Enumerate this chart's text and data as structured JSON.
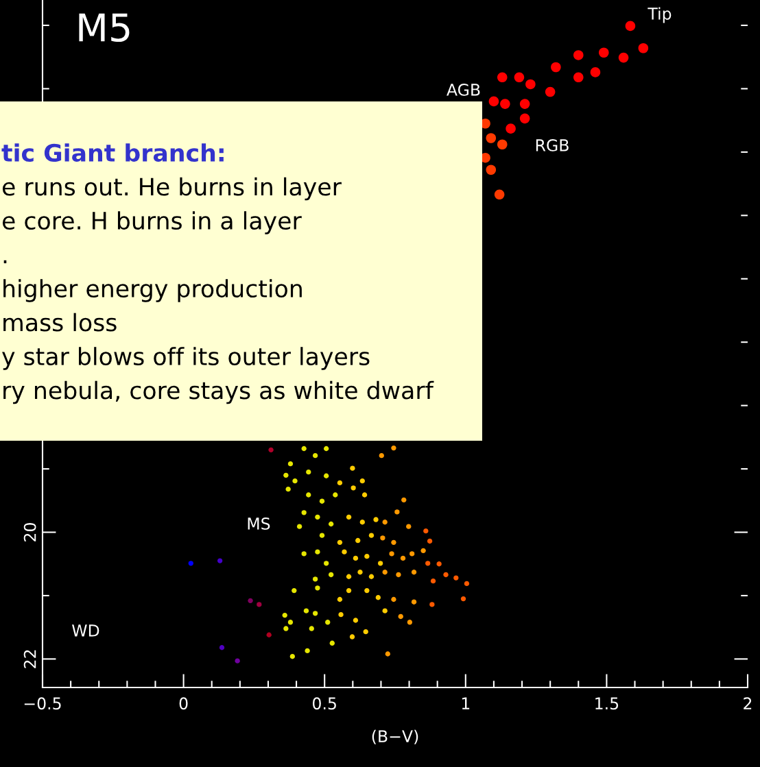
{
  "chart_data": {
    "type": "scatter",
    "title": "M5",
    "xlabel": "(B−V)",
    "xlim": [
      -0.5,
      2.0
    ],
    "ylim": [
      22.45,
      11.6
    ],
    "xticks": [
      {
        "value": -0.5,
        "label": "−0.5"
      },
      {
        "value": -0.4,
        "label": null
      },
      {
        "value": -0.3,
        "label": null
      },
      {
        "value": -0.2,
        "label": null
      },
      {
        "value": -0.1,
        "label": null
      },
      0,
      {
        "value": 0.1,
        "label": null
      },
      {
        "value": 0.2,
        "label": null
      },
      {
        "value": 0.3,
        "label": null
      },
      {
        "value": 0.4,
        "label": null
      },
      0.5,
      {
        "value": 0.6,
        "label": null
      },
      {
        "value": 0.7,
        "label": null
      },
      {
        "value": 0.8,
        "label": null
      },
      {
        "value": 0.9,
        "label": null
      },
      1,
      {
        "value": 1.1,
        "label": null
      },
      {
        "value": 1.2,
        "label": null
      },
      {
        "value": 1.3,
        "label": null
      },
      {
        "value": 1.4,
        "label": null
      },
      1.5,
      {
        "value": 1.6,
        "label": null
      },
      {
        "value": 1.7,
        "label": null
      },
      {
        "value": 1.8,
        "label": null
      },
      {
        "value": 1.9,
        "label": null
      },
      2
    ],
    "yticks": [
      {
        "value": 12,
        "label": null
      },
      {
        "value": 13,
        "label": null
      },
      {
        "value": 14,
        "label": null
      },
      {
        "value": 15,
        "label": null
      },
      {
        "value": 16,
        "label": null
      },
      {
        "value": 17,
        "label": null
      },
      {
        "value": 18,
        "label": null
      },
      {
        "value": 19,
        "label": null
      },
      20,
      {
        "value": 21,
        "label": null
      },
      22
    ],
    "grid": false,
    "legend": false,
    "marker": "circle",
    "series": [
      {
        "color": "#ff0000",
        "x": [
          1.584,
          1.63,
          1.56,
          1.49,
          1.4,
          1.46,
          1.4,
          1.32,
          1.3,
          1.23,
          1.19,
          1.13,
          1.21,
          1.14,
          1.1,
          1.21,
          1.16
        ],
        "values": [
          12.01,
          12.36,
          12.51,
          12.43,
          12.47,
          12.74,
          12.82,
          12.66,
          13.05,
          12.93,
          12.82,
          12.82,
          13.24,
          13.24,
          13.2,
          13.47,
          13.63
        ]
      },
      {
        "color": "#ff3a00",
        "x": [
          1.07,
          1.09,
          1.13,
          1.07,
          1.09,
          1.12
        ],
        "values": [
          13.55,
          13.78,
          13.88,
          14.09,
          14.28,
          14.67
        ]
      },
      {
        "color": "#e6e600",
        "x": [
          0.379,
          0.363,
          0.395,
          0.371,
          0.427,
          0.467,
          0.506,
          0.443,
          0.506,
          0.443,
          0.491,
          0.538,
          0.427,
          0.411,
          0.475,
          0.523,
          0.491,
          0.427,
          0.475,
          0.506,
          0.523,
          0.467,
          0.475,
          0.392,
          0.435,
          0.467,
          0.511,
          0.454,
          0.379,
          0.359,
          0.363,
          0.527,
          0.439,
          0.386
        ],
        "values": [
          18.92,
          19.1,
          19.19,
          19.32,
          18.68,
          18.79,
          18.68,
          19.05,
          19.11,
          19.41,
          19.51,
          19.41,
          19.69,
          19.91,
          19.76,
          19.87,
          20.05,
          20.34,
          20.31,
          20.49,
          20.67,
          20.74,
          20.88,
          20.92,
          21.24,
          21.28,
          21.42,
          21.52,
          21.42,
          21.31,
          21.52,
          21.75,
          21.87,
          21.96
        ]
      },
      {
        "color": "#ffcc00",
        "x": [
          0.554,
          0.602,
          0.642,
          0.586,
          0.634,
          0.682,
          0.554,
          0.618,
          0.666,
          0.57,
          0.61,
          0.65,
          0.698,
          0.666,
          0.626,
          0.586,
          0.554,
          0.586,
          0.65,
          0.69,
          0.558,
          0.61,
          0.646,
          0.598,
          0.599,
          0.634,
          0.714
        ],
        "values": [
          19.22,
          19.3,
          19.41,
          19.76,
          19.84,
          19.8,
          20.16,
          20.13,
          20.05,
          20.31,
          20.41,
          20.38,
          20.49,
          20.7,
          20.63,
          20.7,
          21.06,
          20.92,
          20.92,
          21.03,
          21.3,
          21.39,
          21.57,
          21.65,
          18.99,
          19.19,
          21.24
        ]
      },
      {
        "color": "#ff9900",
        "x": [
          0.714,
          0.706,
          0.745,
          0.738,
          0.778,
          0.81,
          0.762,
          0.714,
          0.817,
          0.745,
          0.817,
          0.77,
          0.802,
          0.724,
          0.745,
          0.702,
          0.781,
          0.757,
          0.798,
          0.85
        ],
        "values": [
          19.84,
          20.09,
          20.16,
          20.34,
          20.41,
          20.34,
          20.67,
          20.63,
          20.63,
          21.06,
          21.1,
          21.33,
          21.42,
          21.92,
          18.67,
          18.79,
          19.49,
          19.68,
          19.91,
          20.29
        ]
      },
      {
        "color": "#ff5a00",
        "x": [
          0.859,
          0.873,
          0.866,
          0.906,
          0.93,
          0.966,
          1.004,
          0.992,
          0.885,
          0.881
        ],
        "values": [
          19.98,
          20.14,
          20.49,
          20.5,
          20.67,
          20.72,
          20.81,
          21.05,
          20.77,
          21.14
        ]
      },
      {
        "colors": [
          "#0000ff",
          "#4400cc",
          "#800060",
          "#a00040",
          "#b00020",
          "#5000c0",
          "#7000a0",
          "#b0002a"
        ],
        "x": [
          0.026,
          0.129,
          0.237,
          0.268,
          0.303,
          0.136,
          0.191,
          0.31
        ],
        "values": [
          20.49,
          20.45,
          21.08,
          21.14,
          21.62,
          21.82,
          22.03,
          18.7
        ]
      }
    ],
    "annotations": [
      "Tip",
      "AGB",
      "RGB",
      "MS",
      "WD",
      "tic Giant branch:",
      "e runs out. He burns in layer",
      "e core. H burns in a layer",
      ".",
      "higher energy production",
      "mass loss",
      "y star blows off its outer layers",
      "ry nebula, core stays as white dwarf"
    ]
  }
}
